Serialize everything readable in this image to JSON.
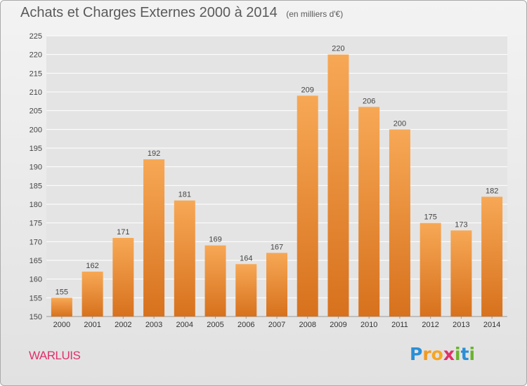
{
  "title": "Achats et Charges Externes 2000 à 2014",
  "unit": "(en milliers d'€)",
  "commune": "WARLUIS",
  "logo": {
    "letters": [
      "P",
      "r",
      "o",
      "x",
      "i",
      "t",
      "i"
    ],
    "colors": [
      "#2a8fd6",
      "#f39a1f",
      "#f5a623",
      "#e0306a",
      "#6ab42d",
      "#2a8fd6",
      "#6ab42d"
    ]
  },
  "chart_data": {
    "type": "bar",
    "categories": [
      "2000",
      "2001",
      "2002",
      "2003",
      "2004",
      "2005",
      "2006",
      "2007",
      "2008",
      "2009",
      "2010",
      "2011",
      "2012",
      "2013",
      "2014"
    ],
    "values": [
      155,
      162,
      171,
      192,
      181,
      169,
      164,
      167,
      209,
      220,
      206,
      200,
      175,
      173,
      182
    ],
    "title": "Achats et Charges Externes 2000 à 2014",
    "xlabel": "",
    "ylabel": "",
    "ylim": [
      150,
      225
    ],
    "yticks": [
      150,
      155,
      160,
      165,
      170,
      175,
      180,
      185,
      190,
      195,
      200,
      205,
      210,
      215,
      220,
      225
    ],
    "grid": true,
    "data_labels": true,
    "bar_color": "#f0a04a"
  }
}
